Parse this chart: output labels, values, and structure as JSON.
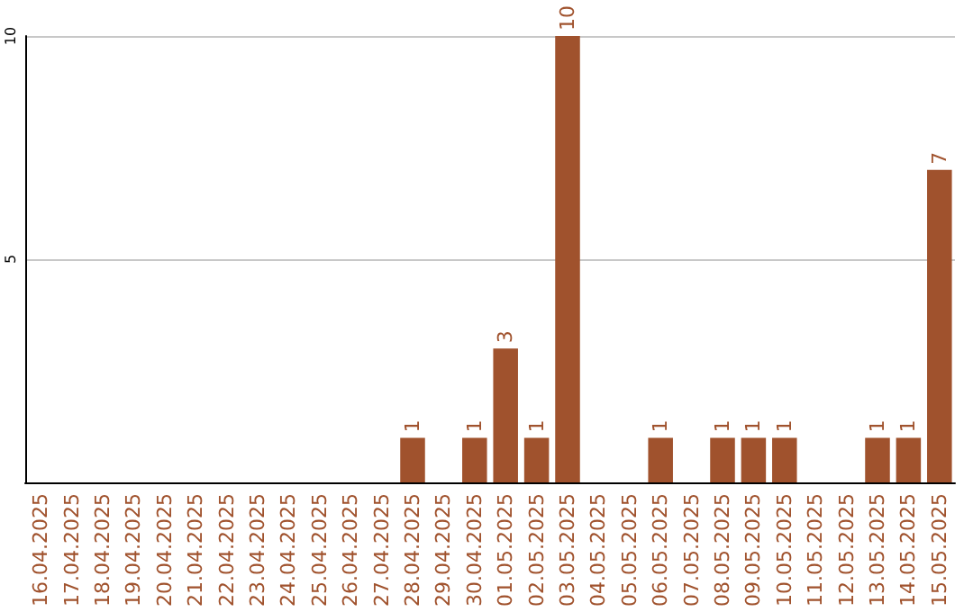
{
  "chart_data": {
    "type": "bar",
    "categories": [
      "16.04.2025",
      "17.04.2025",
      "18.04.2025",
      "19.04.2025",
      "20.04.2025",
      "21.04.2025",
      "22.04.2025",
      "23.04.2025",
      "24.04.2025",
      "25.04.2025",
      "26.04.2025",
      "27.04.2025",
      "28.04.2025",
      "29.04.2025",
      "30.04.2025",
      "01.05.2025",
      "02.05.2025",
      "03.05.2025",
      "04.05.2025",
      "05.05.2025",
      "06.05.2025",
      "07.05.2025",
      "08.05.2025",
      "09.05.2025",
      "10.05.2025",
      "11.05.2025",
      "12.05.2025",
      "13.05.2025",
      "14.05.2025",
      "15.05.2025"
    ],
    "values": [
      0,
      0,
      0,
      0,
      0,
      0,
      0,
      0,
      0,
      0,
      0,
      0,
      1,
      0,
      1,
      3,
      1,
      10,
      0,
      0,
      1,
      0,
      1,
      1,
      1,
      0,
      0,
      1,
      1,
      7
    ],
    "value_labels": [
      null,
      null,
      null,
      null,
      null,
      null,
      null,
      null,
      null,
      null,
      null,
      null,
      "1",
      null,
      "1",
      "3",
      "1",
      "10",
      null,
      null,
      "1",
      null,
      "1",
      "1",
      "1",
      null,
      null,
      "1",
      "1",
      "7"
    ],
    "color": "#a0522d",
    "ylim": [
      0,
      10
    ],
    "yticks": [
      {
        "value": 0,
        "label": null
      },
      5,
      10
    ],
    "grid": "y"
  }
}
